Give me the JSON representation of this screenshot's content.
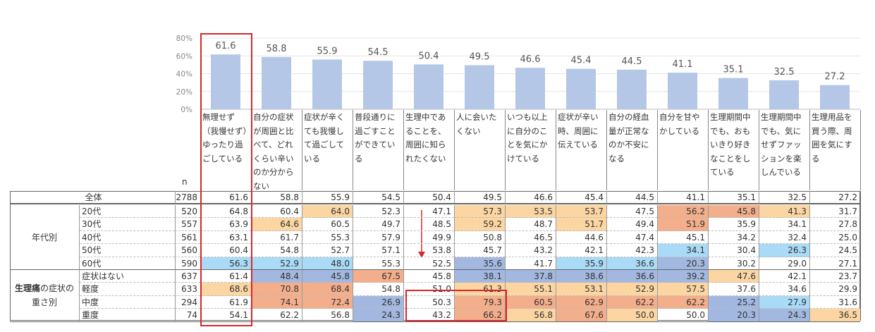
{
  "chart_data": {
    "type": "bar",
    "ylim": [
      0,
      80
    ],
    "yticks": [
      "0%",
      "20%",
      "40%",
      "60%",
      "80%"
    ],
    "bar_color": "#b4c7e7",
    "categories": [
      "無理せず（我慢せず）ゆったり過ごしている",
      "自分の症状が周囲と比べて、どれくらい辛いのか分からない",
      "症状が辛くても我慢して過ごしている",
      "普段通りに過ごすことができている",
      "生理中であることを、周囲に知られたくない",
      "人に会いたくない",
      "いつも以上に自分のことを気にかけている",
      "症状が辛い時、周囲に伝えている",
      "自分の経血量が正常なのか不安になる",
      "自分を甘やかしている",
      "生理期間中でも、おもいきり好きなことをしている",
      "生理期間中でも、気にせずファッションを楽しんでいる",
      "生理用品を買う際、周囲を気にする"
    ],
    "values": [
      61.6,
      58.8,
      55.9,
      54.5,
      50.4,
      49.5,
      46.6,
      45.4,
      44.5,
      41.1,
      35.1,
      32.5,
      27.2
    ],
    "value_labels": [
      "61.6",
      "58.8",
      "55.9",
      "54.5",
      "50.4",
      "49.5",
      "46.6",
      "45.4",
      "44.5",
      "41.1",
      "35.1",
      "32.5",
      "27.2"
    ]
  },
  "table": {
    "n_header": "n",
    "colors": {
      "o": "#fcd6a2",
      "s": "#f3ae8b",
      "b": "#a3b8e0",
      "l": "#a9daf6"
    },
    "total": {
      "label": "全体",
      "n": "2788",
      "values": [
        "61.6",
        "58.8",
        "55.9",
        "54.5",
        "50.4",
        "49.5",
        "46.6",
        "45.4",
        "44.5",
        "41.1",
        "35.1",
        "32.5",
        "27.2"
      ]
    },
    "groups": [
      {
        "label": "年代別",
        "label_bold": "",
        "label_rest": "年代別",
        "rows": [
          {
            "label": "20代",
            "n": "520",
            "values": [
              "64.8",
              "60.4",
              "64.0",
              "52.3",
              "47.1",
              "57.3",
              "53.5",
              "53.7",
              "47.5",
              "56.2",
              "45.8",
              "41.3",
              "31.7"
            ],
            "highlight": [
              "",
              "",
              "o",
              "",
              "",
              "o",
              "o",
              "o",
              "",
              "s",
              "s",
              "o",
              ""
            ]
          },
          {
            "label": "30代",
            "n": "557",
            "values": [
              "63.9",
              "64.6",
              "60.5",
              "49.7",
              "48.5",
              "59.2",
              "48.7",
              "51.7",
              "49.4",
              "51.9",
              "35.9",
              "34.1",
              "27.8"
            ],
            "highlight": [
              "",
              "o",
              "",
              "",
              "",
              "o",
              "",
              "o",
              "",
              "s",
              "",
              "",
              ""
            ]
          },
          {
            "label": "40代",
            "n": "561",
            "values": [
              "63.1",
              "61.7",
              "55.3",
              "57.9",
              "49.9",
              "50.8",
              "46.5",
              "44.6",
              "47.4",
              "45.1",
              "34.2",
              "32.4",
              "25.0"
            ],
            "highlight": [
              "",
              "",
              "",
              "",
              "",
              "",
              "",
              "",
              "",
              "",
              "",
              "",
              ""
            ]
          },
          {
            "label": "50代",
            "n": "560",
            "values": [
              "60.4",
              "54.8",
              "52.7",
              "57.1",
              "53.8",
              "45.7",
              "43.2",
              "42.1",
              "42.3",
              "34.1",
              "30.4",
              "26.3",
              "24.5"
            ],
            "highlight": [
              "",
              "",
              "",
              "",
              "",
              "",
              "",
              "",
              "",
              "l",
              "",
              "l",
              ""
            ]
          },
          {
            "label": "60代",
            "n": "590",
            "values": [
              "56.3",
              "52.9",
              "48.0",
              "55.3",
              "52.5",
              "35.6",
              "41.7",
              "35.9",
              "36.6",
              "20.3",
              "30.2",
              "29.0",
              "27.1"
            ],
            "highlight": [
              "l",
              "l",
              "l",
              "",
              "",
              "b",
              "",
              "l",
              "l",
              "b",
              "",
              "",
              ""
            ]
          }
        ]
      },
      {
        "label_bold": "生理痛",
        "label_rest": "の症状の",
        "label_line2": "重さ別",
        "rows": [
          {
            "label": "症状はない",
            "n": "637",
            "values": [
              "61.4",
              "48.4",
              "45.8",
              "67.5",
              "45.8",
              "38.1",
              "37.8",
              "38.6",
              "36.6",
              "39.2",
              "47.6",
              "42.1",
              "23.7"
            ],
            "highlight": [
              "",
              "b",
              "b",
              "s",
              "",
              "b",
              "b",
              "b",
              "b",
              "b",
              "o",
              "",
              ""
            ]
          },
          {
            "label": "軽度",
            "n": "633",
            "values": [
              "68.6",
              "70.8",
              "68.4",
              "54.8",
              "51.0",
              "61.3",
              "55.1",
              "53.1",
              "52.9",
              "57.5",
              "37.6",
              "34.6",
              "29.9"
            ],
            "highlight": [
              "o",
              "s",
              "s",
              "",
              "",
              "o",
              "o",
              "o",
              "o",
              "o",
              "",
              "",
              ""
            ]
          },
          {
            "label": "中度",
            "n": "294",
            "values": [
              "61.9",
              "74.1",
              "72.4",
              "26.9",
              "50.3",
              "79.3",
              "60.5",
              "62.9",
              "62.2",
              "62.2",
              "25.2",
              "27.9",
              "31.6"
            ],
            "highlight": [
              "",
              "s",
              "s",
              "b",
              "",
              "s",
              "s",
              "s",
              "s",
              "s",
              "b",
              "l",
              ""
            ]
          },
          {
            "label": "重度",
            "n": "74",
            "values": [
              "54.1",
              "62.2",
              "56.8",
              "24.3",
              "43.2",
              "66.2",
              "56.8",
              "67.6",
              "50.0",
              "50.0",
              "20.3",
              "24.3",
              "36.5"
            ],
            "highlight": [
              "",
              "",
              "",
              "b",
              "",
              "s",
              "o",
              "s",
              "o",
              "",
              "b",
              "b",
              "o"
            ]
          }
        ]
      }
    ]
  },
  "annotation_color": "#d9262c"
}
